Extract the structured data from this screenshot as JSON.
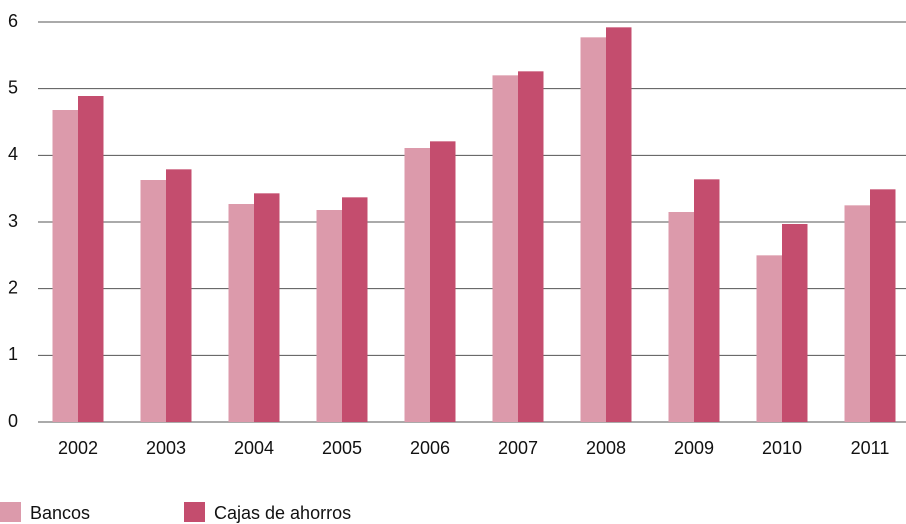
{
  "chart_data": {
    "type": "bar",
    "categories": [
      "2002",
      "2003",
      "2004",
      "2005",
      "2006",
      "2007",
      "2008",
      "2009",
      "2010",
      "2011"
    ],
    "series": [
      {
        "name": "Bancos",
        "color": "#dc9aab",
        "values": [
          4.68,
          3.63,
          3.27,
          3.18,
          4.11,
          5.2,
          5.77,
          3.15,
          2.5,
          3.25
        ]
      },
      {
        "name": "Cajas de ahorros",
        "color": "#c44d6e",
        "values": [
          4.89,
          3.79,
          3.43,
          3.37,
          4.21,
          5.26,
          5.92,
          3.64,
          2.97,
          3.49
        ]
      }
    ],
    "ylim": [
      0,
      6
    ],
    "yticks": [
      0,
      1,
      2,
      3,
      4,
      5,
      6
    ],
    "grid": true,
    "legend": "bottom-left"
  }
}
